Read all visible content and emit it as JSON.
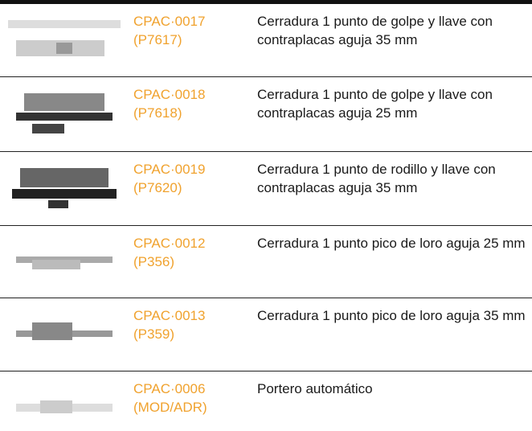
{
  "table": {
    "rows": [
      {
        "code": "CPAC·0017",
        "ref": "(P7617)",
        "description": "Cerradura 1 punto de golpe y llave con contraplacas aguja 35 mm"
      },
      {
        "code": "CPAC·0018",
        "ref": "(P7618)",
        "description": "Cerradura 1 punto de golpe y llave con contraplacas aguja 25 mm"
      },
      {
        "code": "CPAC·0019",
        "ref": "(P7620)",
        "description": "Cerradura 1 punto de rodillo y llave con contraplacas aguja 35 mm"
      },
      {
        "code": "CPAC·0012",
        "ref": "(P356)",
        "description": "Cerradura 1 punto pico de loro aguja 25 mm"
      },
      {
        "code": "CPAC·0013",
        "ref": "(P359)",
        "description": "Cerradura 1 punto pico de loro aguja 35 mm"
      },
      {
        "code": "CPAC·0006",
        "ref": "(MOD/ADR)",
        "description": "Portero automático"
      }
    ]
  }
}
